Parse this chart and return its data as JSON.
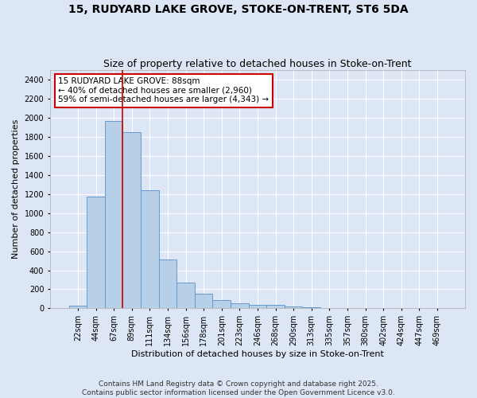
{
  "title_line1": "15, RUDYARD LAKE GROVE, STOKE-ON-TRENT, ST6 5DA",
  "title_line2": "Size of property relative to detached houses in Stoke-on-Trent",
  "xlabel": "Distribution of detached houses by size in Stoke-on-Trent",
  "ylabel": "Number of detached properties",
  "categories": [
    "22sqm",
    "44sqm",
    "67sqm",
    "89sqm",
    "111sqm",
    "134sqm",
    "156sqm",
    "178sqm",
    "201sqm",
    "223sqm",
    "246sqm",
    "268sqm",
    "290sqm",
    "313sqm",
    "335sqm",
    "357sqm",
    "380sqm",
    "402sqm",
    "424sqm",
    "447sqm",
    "469sqm"
  ],
  "values": [
    30,
    1170,
    1970,
    1850,
    1240,
    510,
    270,
    155,
    90,
    50,
    40,
    35,
    20,
    15,
    5,
    5,
    2,
    2,
    2,
    2,
    2
  ],
  "bar_color": "#b8cfe8",
  "bar_edge_color": "#6699cc",
  "vline_color": "#cc0000",
  "annotation_text": "15 RUDYARD LAKE GROVE: 88sqm\n← 40% of detached houses are smaller (2,960)\n59% of semi-detached houses are larger (4,343) →",
  "annotation_box_color": "#cc0000",
  "ylim": [
    0,
    2500
  ],
  "yticks": [
    0,
    200,
    400,
    600,
    800,
    1000,
    1200,
    1400,
    1600,
    1800,
    2000,
    2200,
    2400
  ],
  "bg_color": "#dce6f5",
  "plot_bg_color": "#dce6f5",
  "grid_color": "#ffffff",
  "footer_line1": "Contains HM Land Registry data © Crown copyright and database right 2025.",
  "footer_line2": "Contains public sector information licensed under the Open Government Licence v3.0.",
  "title_fontsize": 10,
  "subtitle_fontsize": 9,
  "axis_label_fontsize": 8,
  "tick_fontsize": 7,
  "annotation_fontsize": 7.5,
  "footer_fontsize": 6.5
}
